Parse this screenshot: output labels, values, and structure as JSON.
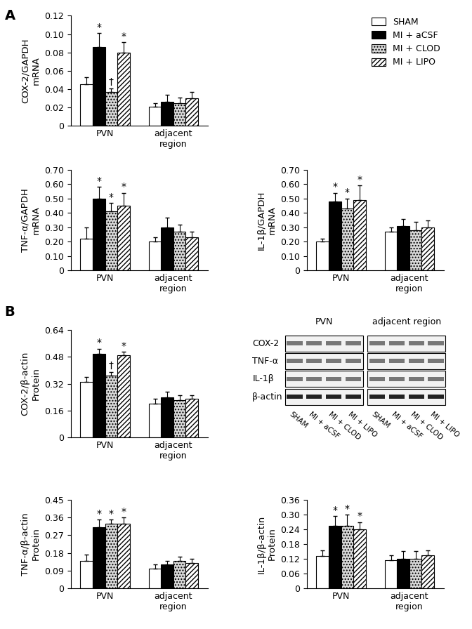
{
  "panels": [
    "A",
    "B"
  ],
  "chart_data": [
    {
      "type": "bar",
      "ylabel": "COX-2/GAPDH\nmRNA",
      "categories": [
        "PVN",
        "adjacent\nregion"
      ],
      "ylim": [
        0,
        0.12
      ],
      "yticks": [
        0,
        0.02,
        0.04,
        0.06,
        0.08,
        {
          "value": 0.1,
          "label": "0.10"
        },
        0.12
      ],
      "legend": "upper right",
      "series": [
        {
          "name": "SHAM",
          "color": "#ffffff",
          "values": [
            0.045,
            0.021
          ],
          "errors": [
            0.008,
            0.004
          ],
          "significance": [
            null,
            null
          ]
        },
        {
          "name": "MI + aCSF",
          "color": "#000000",
          "values": [
            0.086,
            0.026
          ],
          "errors": [
            0.015,
            0.008
          ],
          "significance": [
            "*",
            null
          ]
        },
        {
          "name": "MI + CLOD",
          "color": "#d9d9d9",
          "values": [
            0.037,
            0.025
          ],
          "errors": [
            0.004,
            0.006
          ],
          "significance": [
            "†",
            null
          ]
        },
        {
          "name": "MI + LIPO",
          "color": "#ffffff",
          "values": [
            0.08,
            0.03
          ],
          "errors": [
            0.011,
            0.007
          ],
          "significance": [
            "*",
            null
          ]
        }
      ]
    },
    {
      "type": "bar",
      "ylabel": "TNF-α/GAPDH\nmRNA",
      "categories": [
        "PVN",
        "adjacent\nregion"
      ],
      "ylim": [
        0,
        0.7
      ],
      "yticks": [
        0,
        {
          "value": 0.1,
          "label": "0.10"
        },
        {
          "value": 0.2,
          "label": "0.20"
        },
        {
          "value": 0.3,
          "label": "0.30"
        },
        {
          "value": 0.4,
          "label": "0.40"
        },
        {
          "value": 0.5,
          "label": "0.50"
        },
        {
          "value": 0.6,
          "label": "0.60"
        },
        {
          "value": 0.7,
          "label": "0.70"
        }
      ],
      "series": [
        {
          "name": "SHAM",
          "color": "#ffffff",
          "values": [
            0.22,
            0.2
          ],
          "errors": [
            0.08,
            0.03
          ],
          "significance": [
            null,
            null
          ]
        },
        {
          "name": "MI + aCSF",
          "color": "#000000",
          "values": [
            0.5,
            0.3
          ],
          "errors": [
            0.08,
            0.07
          ],
          "significance": [
            "*",
            null
          ]
        },
        {
          "name": "MI + CLOD",
          "color": "#d9d9d9",
          "values": [
            0.41,
            0.27
          ],
          "errors": [
            0.06,
            0.05
          ],
          "significance": [
            "*",
            null
          ]
        },
        {
          "name": "MI + LIPO",
          "color": "#ffffff",
          "values": [
            0.45,
            0.23
          ],
          "errors": [
            0.09,
            0.04
          ],
          "significance": [
            "*",
            null
          ]
        }
      ]
    },
    {
      "type": "bar",
      "ylabel": "IL-1β/GAPDH\nmRNA",
      "categories": [
        "PVN",
        "adjacent\nregion"
      ],
      "ylim": [
        0,
        0.7
      ],
      "yticks": [
        0,
        {
          "value": 0.1,
          "label": "0.10"
        },
        {
          "value": 0.2,
          "label": "0.20"
        },
        {
          "value": 0.3,
          "label": "0.30"
        },
        {
          "value": 0.4,
          "label": "0.40"
        },
        {
          "value": 0.5,
          "label": "0.50"
        },
        {
          "value": 0.6,
          "label": "0.60"
        },
        {
          "value": 0.7,
          "label": "0.70"
        }
      ],
      "series": [
        {
          "name": "SHAM",
          "color": "#ffffff",
          "values": [
            0.2,
            0.27
          ],
          "errors": [
            0.02,
            0.03
          ],
          "significance": [
            null,
            null
          ]
        },
        {
          "name": "MI + aCSF",
          "color": "#000000",
          "values": [
            0.48,
            0.31
          ],
          "errors": [
            0.06,
            0.05
          ],
          "significance": [
            "*",
            null
          ]
        },
        {
          "name": "MI + CLOD",
          "color": "#d9d9d9",
          "values": [
            0.43,
            0.28
          ],
          "errors": [
            0.07,
            0.06
          ],
          "significance": [
            "*",
            null
          ]
        },
        {
          "name": "MI + LIPO",
          "color": "#ffffff",
          "values": [
            0.49,
            0.3
          ],
          "errors": [
            0.1,
            0.05
          ],
          "significance": [
            "*",
            null
          ]
        }
      ]
    },
    {
      "type": "bar",
      "ylabel": "COX-2/β-actin\nProtein",
      "categories": [
        "PVN",
        "adjacent\nregion"
      ],
      "ylim": [
        0,
        0.64
      ],
      "yticks": [
        0,
        0.16,
        0.32,
        0.48,
        0.64
      ],
      "series": [
        {
          "name": "SHAM",
          "color": "#ffffff",
          "values": [
            0.33,
            0.2
          ],
          "errors": [
            0.03,
            0.03
          ],
          "significance": [
            null,
            null
          ]
        },
        {
          "name": "MI + aCSF",
          "color": "#000000",
          "values": [
            0.5,
            0.24
          ],
          "errors": [
            0.03,
            0.03
          ],
          "significance": [
            "*",
            null
          ]
        },
        {
          "name": "MI + CLOD",
          "color": "#d9d9d9",
          "values": [
            0.37,
            0.22
          ],
          "errors": [
            0.02,
            0.03
          ],
          "significance": [
            "†",
            null
          ]
        },
        {
          "name": "MI + LIPO",
          "color": "#ffffff",
          "values": [
            0.49,
            0.23
          ],
          "errors": [
            0.02,
            0.02
          ],
          "significance": [
            "*",
            null
          ]
        }
      ]
    },
    {
      "type": "bar",
      "ylabel": "TNF-α/β-actin\nProtein",
      "categories": [
        "PVN",
        "adjacent\nregion"
      ],
      "ylim": [
        0,
        0.45
      ],
      "yticks": [
        0,
        0.09,
        0.18,
        0.27,
        0.36,
        0.45
      ],
      "series": [
        {
          "name": "SHAM",
          "color": "#ffffff",
          "values": [
            0.14,
            0.1
          ],
          "errors": [
            0.03,
            0.02
          ],
          "significance": [
            null,
            null
          ]
        },
        {
          "name": "MI + aCSF",
          "color": "#000000",
          "values": [
            0.31,
            0.12
          ],
          "errors": [
            0.04,
            0.02
          ],
          "significance": [
            "*",
            null
          ]
        },
        {
          "name": "MI + CLOD",
          "color": "#d9d9d9",
          "values": [
            0.33,
            0.14
          ],
          "errors": [
            0.02,
            0.02
          ],
          "significance": [
            "*",
            null
          ]
        },
        {
          "name": "MI + LIPO",
          "color": "#ffffff",
          "values": [
            0.33,
            0.13
          ],
          "errors": [
            0.03,
            0.02
          ],
          "significance": [
            "*",
            null
          ]
        }
      ]
    },
    {
      "type": "bar",
      "ylabel": "IL-1β/β-actin\nProtein",
      "categories": [
        "PVN",
        "adjacent\nregion"
      ],
      "ylim": [
        0,
        0.36
      ],
      "yticks": [
        0,
        0.06,
        0.12,
        0.18,
        0.24,
        {
          "value": 0.3,
          "label": "0.30"
        },
        0.36
      ],
      "series": [
        {
          "name": "SHAM",
          "color": "#ffffff",
          "values": [
            0.13,
            0.115
          ],
          "errors": [
            0.025,
            0.02
          ],
          "significance": [
            null,
            null
          ]
        },
        {
          "name": "MI + aCSF",
          "color": "#000000",
          "values": [
            0.255,
            0.12
          ],
          "errors": [
            0.04,
            0.03
          ],
          "significance": [
            "*",
            null
          ]
        },
        {
          "name": "MI + CLOD",
          "color": "#d9d9d9",
          "values": [
            0.255,
            0.12
          ],
          "errors": [
            0.045,
            0.03
          ],
          "significance": [
            "*",
            null
          ]
        },
        {
          "name": "MI + LIPO",
          "color": "#ffffff",
          "values": [
            0.24,
            0.135
          ],
          "errors": [
            0.03,
            0.02
          ],
          "significance": [
            "*",
            null
          ]
        }
      ]
    }
  ],
  "blot": {
    "groups": [
      "PVN",
      "adjacent region"
    ],
    "rows": [
      "COX-2",
      "TNF-α",
      "IL-1β",
      "β-actin"
    ],
    "lanes": [
      "SHAM",
      "MI + aCSF",
      "MI + CLOD",
      "MI + LIPO",
      "SHAM",
      "MI + aCSF",
      "MI + CLOD",
      "MI + LIPO"
    ]
  }
}
